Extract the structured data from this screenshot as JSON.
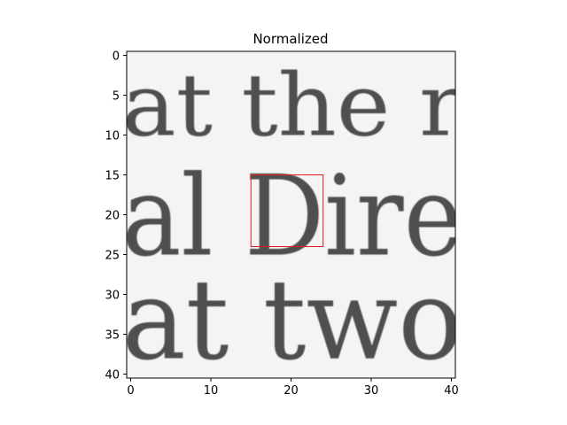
{
  "chart_data": {
    "type": "heatmap",
    "title": "Normalized",
    "xlabel": "",
    "ylabel": "",
    "colormap": "gray",
    "xlim": [
      -0.5,
      40.5
    ],
    "ylim": [
      40.5,
      -0.5
    ],
    "x_ticks": [
      0,
      10,
      20,
      30,
      40
    ],
    "y_ticks": [
      0,
      5,
      10,
      15,
      20,
      25,
      30,
      35,
      40
    ],
    "grid": false,
    "image_rows": 41,
    "image_cols": 41,
    "image_text_lines": [
      {
        "text": "at the r",
        "row_top": 3,
        "row_bottom": 10,
        "col_start": -0.5
      },
      {
        "text": "al Dire",
        "row_top": 16,
        "row_bottom": 25,
        "col_start": -0.5
      },
      {
        "text": "at two",
        "row_top": 29,
        "row_bottom": 38,
        "col_start": -0.5
      }
    ],
    "highlight_box": {
      "x0": 15,
      "y0": 15,
      "x1": 24,
      "y1": 24,
      "color": "#e31a1c"
    }
  }
}
